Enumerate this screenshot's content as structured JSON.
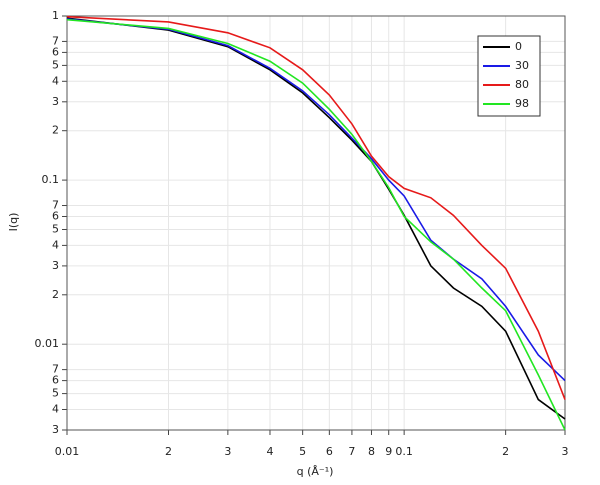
{
  "chart_data": {
    "type": "line",
    "xlabel": "q (Å⁻¹)",
    "ylabel": "I(q)",
    "log_x": true,
    "log_y": true,
    "grid": true,
    "legend": "upper right",
    "xlim": [
      0.01,
      0.3
    ],
    "ylim": [
      0.003,
      1
    ],
    "xticks": [
      0.01,
      {
        "value": 0.02,
        "label": "2"
      },
      {
        "value": 0.03,
        "label": "3"
      },
      {
        "value": 0.04,
        "label": "4"
      },
      {
        "value": 0.05,
        "label": "5"
      },
      {
        "value": 0.06,
        "label": "6"
      },
      {
        "value": 0.07,
        "label": "7"
      },
      {
        "value": 0.08,
        "label": "8"
      },
      {
        "value": 0.09,
        "label": "9"
      },
      0.1,
      {
        "value": 0.2,
        "label": "2"
      },
      {
        "value": 0.3,
        "label": "3"
      }
    ],
    "yticks": [
      1,
      {
        "value": 0.7,
        "label": "7"
      },
      {
        "value": 0.6,
        "label": "6"
      },
      {
        "value": 0.5,
        "label": "5"
      },
      {
        "value": 0.4,
        "label": "4"
      },
      {
        "value": 0.3,
        "label": "3"
      },
      {
        "value": 0.2,
        "label": "2"
      },
      0.1,
      {
        "value": 0.07,
        "label": "7"
      },
      {
        "value": 0.06,
        "label": "6"
      },
      {
        "value": 0.05,
        "label": "5"
      },
      {
        "value": 0.04,
        "label": "4"
      },
      {
        "value": 0.03,
        "label": "3"
      },
      {
        "value": 0.02,
        "label": "2"
      },
      0.01,
      {
        "value": 0.007,
        "label": "7"
      },
      {
        "value": 0.006,
        "label": "6"
      },
      {
        "value": 0.005,
        "label": "5"
      },
      {
        "value": 0.004,
        "label": "4"
      },
      {
        "value": 0.003,
        "label": "3"
      }
    ],
    "x": [
      0.01,
      0.02,
      0.03,
      0.04,
      0.05,
      0.06,
      0.07,
      0.08,
      0.09,
      0.1,
      0.12,
      0.14,
      0.17,
      0.2,
      0.25,
      0.3
    ],
    "series": [
      {
        "name": "0",
        "color": "#000000",
        "values": [
          0.97,
          0.82,
          0.65,
          0.47,
          0.34,
          0.24,
          0.175,
          0.13,
          0.088,
          0.061,
          0.03,
          0.022,
          0.017,
          0.012,
          0.0046,
          0.0035
        ]
      },
      {
        "name": "30",
        "color": "#1a1ae6",
        "values": [
          0.96,
          0.83,
          0.66,
          0.48,
          0.35,
          0.25,
          0.18,
          0.135,
          0.1,
          0.08,
          0.043,
          0.033,
          0.025,
          0.017,
          0.0086,
          0.006
        ]
      },
      {
        "name": "80",
        "color": "#e61a1a",
        "values": [
          0.99,
          0.92,
          0.79,
          0.64,
          0.47,
          0.33,
          0.22,
          0.14,
          0.105,
          0.089,
          0.078,
          0.061,
          0.04,
          0.029,
          0.012,
          0.0046
        ]
      },
      {
        "name": "98",
        "color": "#22e622",
        "values": [
          0.95,
          0.84,
          0.68,
          0.53,
          0.39,
          0.27,
          0.19,
          0.13,
          0.09,
          0.06,
          0.042,
          0.033,
          0.022,
          0.016,
          0.0065,
          0.003
        ]
      }
    ]
  }
}
